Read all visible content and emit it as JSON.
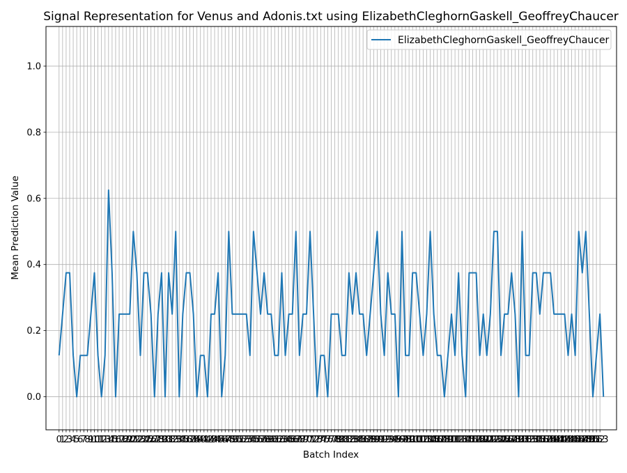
{
  "chart_data": {
    "type": "line",
    "title": "Signal Representation for Venus and Adonis.txt using ElizabethCleghornGaskell_GeoffreyChaucer",
    "xlabel": "Batch Index",
    "ylabel": "Mean Prediction Value",
    "xlim": [
      -3.7,
      157.7
    ],
    "ylim": [
      -0.1,
      1.12
    ],
    "x_tick_labels": [
      "0",
      "1",
      "2",
      "3",
      "4",
      "5",
      "6",
      "7",
      "8",
      "9",
      "10",
      "11",
      "12",
      "13",
      "14",
      "15",
      "16",
      "17",
      "18",
      "19",
      "20",
      "21",
      "22",
      "23",
      "24",
      "25",
      "26",
      "27",
      "28",
      "29",
      "30",
      "31",
      "32",
      "33",
      "34",
      "35",
      "36",
      "37",
      "38",
      "39",
      "40",
      "41",
      "42",
      "43",
      "44",
      "45",
      "46",
      "47",
      "48",
      "49",
      "50",
      "51",
      "52",
      "53",
      "54",
      "55",
      "56",
      "57",
      "58",
      "59",
      "60",
      "61",
      "62",
      "63",
      "64",
      "65",
      "66",
      "67",
      "68",
      "69",
      "70",
      "71",
      "72",
      "73",
      "74",
      "75",
      "76",
      "77",
      "78",
      "79",
      "80",
      "81",
      "82",
      "83",
      "84",
      "85",
      "86",
      "87",
      "88",
      "89",
      "90",
      "91",
      "92",
      "93",
      "94",
      "95",
      "96",
      "97",
      "98",
      "99",
      "100",
      "101",
      "102",
      "103",
      "104",
      "105",
      "106",
      "107",
      "108",
      "109",
      "110",
      "111",
      "112",
      "113",
      "114",
      "115",
      "116",
      "117",
      "118",
      "119",
      "120",
      "121",
      "122",
      "123",
      "124",
      "125",
      "126",
      "127",
      "128",
      "129",
      "130",
      "131",
      "132",
      "133",
      "134",
      "135",
      "136",
      "137",
      "138",
      "139",
      "140",
      "141",
      "142",
      "143",
      "144",
      "145",
      "146",
      "147",
      "148",
      "149",
      "150",
      "151",
      "152",
      "153"
    ],
    "y_tick_labels": [
      "0.0",
      "0.2",
      "0.4",
      "0.6",
      "0.8",
      "1.0"
    ],
    "y_ticks": [
      0,
      0.2,
      0.4,
      0.6,
      0.8,
      1.0
    ],
    "grid": true,
    "legend_position": "upper-right",
    "series": [
      {
        "name": "ElizabethCleghornGaskell_GeoffreyChaucer",
        "color": "#1f77b4",
        "values": [
          0.125,
          0.25,
          0.375,
          0.375,
          0.125,
          0.0,
          0.125,
          0.125,
          0.125,
          0.25,
          0.375,
          0.125,
          0.0,
          0.125,
          0.625,
          0.375,
          0.0,
          0.25,
          0.25,
          0.25,
          0.25,
          0.5,
          0.375,
          0.125,
          0.375,
          0.375,
          0.25,
          0.0,
          0.25,
          0.375,
          0.0,
          0.375,
          0.25,
          0.5,
          0.0,
          0.25,
          0.375,
          0.375,
          0.25,
          0.0,
          0.125,
          0.125,
          0.0,
          0.25,
          0.25,
          0.375,
          0.0,
          0.125,
          0.5,
          0.25,
          0.25,
          0.25,
          0.25,
          0.25,
          0.125,
          0.5,
          0.375,
          0.25,
          0.375,
          0.25,
          0.25,
          0.125,
          0.125,
          0.375,
          0.125,
          0.25,
          0.25,
          0.5,
          0.125,
          0.25,
          0.25,
          0.5,
          0.25,
          0.0,
          0.125,
          0.125,
          0.0,
          0.25,
          0.25,
          0.25,
          0.125,
          0.125,
          0.375,
          0.25,
          0.375,
          0.25,
          0.25,
          0.125,
          0.25,
          0.375,
          0.5,
          0.25,
          0.125,
          0.375,
          0.25,
          0.25,
          0.0,
          0.5,
          0.125,
          0.125,
          0.375,
          0.375,
          0.25,
          0.125,
          0.25,
          0.5,
          0.25,
          0.125,
          0.125,
          0.0,
          0.125,
          0.25,
          0.125,
          0.375,
          0.125,
          0.0,
          0.375,
          0.375,
          0.375,
          0.125,
          0.25,
          0.125,
          0.25,
          0.5,
          0.5,
          0.125,
          0.25,
          0.25,
          0.375,
          0.25,
          0.0,
          0.5,
          0.125,
          0.125,
          0.375,
          0.375,
          0.25,
          0.375,
          0.375,
          0.375,
          0.25,
          0.25,
          0.25,
          0.25,
          0.125,
          0.25,
          0.125,
          0.5,
          0.375,
          0.5,
          0.25,
          0.0,
          0.125,
          0.25,
          0.0
        ]
      }
    ]
  }
}
